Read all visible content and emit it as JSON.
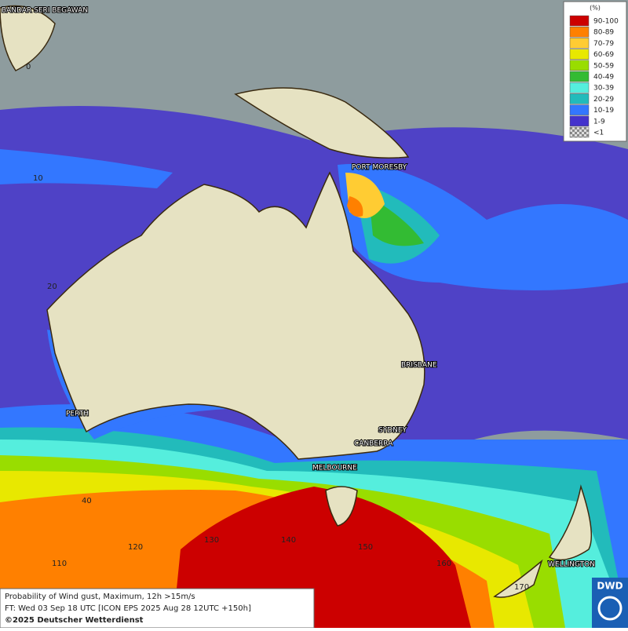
{
  "map": {
    "places": [
      "BANDAR SERI BEGAWAN",
      "PORT MORESBY",
      "BRISBANE",
      "PERTH",
      "SYDNEY",
      "CANBERRA",
      "MELBOURNE",
      "WELLINGTON"
    ],
    "latitude_labels": [
      "0",
      "10",
      "20",
      "40"
    ],
    "longitude_labels": [
      "110",
      "120",
      "130",
      "140",
      "150",
      "160",
      "170"
    ]
  },
  "legend": {
    "unit": "(%)",
    "items": [
      {
        "label": "90-100",
        "color": "#cc0000"
      },
      {
        "label": "80-89",
        "color": "#ff8000"
      },
      {
        "label": "70-79",
        "color": "#ffcc33"
      },
      {
        "label": "60-69",
        "color": "#e8e800"
      },
      {
        "label": "50-59",
        "color": "#99dd00"
      },
      {
        "label": "40-49",
        "color": "#33bb33"
      },
      {
        "label": "30-39",
        "color": "#55eedd"
      },
      {
        "label": "20-29",
        "color": "#22bbbb"
      },
      {
        "label": "10-19",
        "color": "#3377ff"
      },
      {
        "label": "1-9",
        "color": "#4433cc"
      },
      {
        "label": "<1",
        "color": "#aaaaaa"
      }
    ]
  },
  "footer": {
    "line1": "Probability of Wind gust, Maximum, 12h >15m/s",
    "line2": "FT: Wed 03 Sep 18 UTC [ICON EPS 2025 Aug 28 12UTC +150h]",
    "copyright": "©2025 Deutscher Wetterdienst"
  },
  "logo": "DWD"
}
